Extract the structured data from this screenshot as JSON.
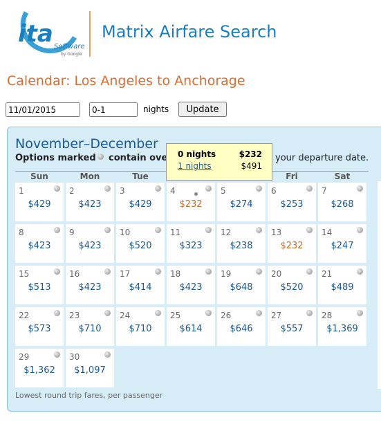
{
  "header": {
    "logo": "ita",
    "logo_sub": "Software",
    "logo_by": "by Google",
    "title": "Matrix Airfare Search"
  },
  "heading": "Calendar: Los Angeles to Anchorage",
  "form": {
    "date": "11/01/2015",
    "nights": "0-1",
    "nights_label": "nights",
    "button": "Update"
  },
  "calendar": {
    "title": "November–December",
    "legend_start": "Options marked",
    "legend_mid": "contain ove",
    "legend_end": "your departure date.",
    "weekdays": [
      "Sun",
      "Mon",
      "Tue",
      null,
      null,
      "Fri",
      "Sat"
    ],
    "days": [
      {
        "day": "1",
        "price": "$429"
      },
      {
        "day": "2",
        "price": "$423"
      },
      {
        "day": "3",
        "price": "$429"
      },
      {
        "day": "4",
        "price": "$232",
        "highlight": true,
        "selected": true
      },
      {
        "day": "5",
        "price": "$274"
      },
      {
        "day": "6",
        "price": "$253"
      },
      {
        "day": "7",
        "price": "$268"
      },
      {
        "day": "8",
        "price": "$423"
      },
      {
        "day": "9",
        "price": "$423"
      },
      {
        "day": "10",
        "price": "$520"
      },
      {
        "day": "11",
        "price": "$323"
      },
      {
        "day": "12",
        "price": "$238"
      },
      {
        "day": "13",
        "price": "$232",
        "highlight": true
      },
      {
        "day": "14",
        "price": "$247"
      },
      {
        "day": "15",
        "price": "$513"
      },
      {
        "day": "16",
        "price": "$423"
      },
      {
        "day": "17",
        "price": "$414"
      },
      {
        "day": "18",
        "price": "$423"
      },
      {
        "day": "19",
        "price": "$648"
      },
      {
        "day": "20",
        "price": "$520"
      },
      {
        "day": "21",
        "price": "$489"
      },
      {
        "day": "22",
        "price": "$573"
      },
      {
        "day": "23",
        "price": "$710"
      },
      {
        "day": "24",
        "price": "$710"
      },
      {
        "day": "25",
        "price": "$614"
      },
      {
        "day": "26",
        "price": "$646"
      },
      {
        "day": "27",
        "price": "$557"
      },
      {
        "day": "28",
        "price": "$1,369"
      },
      {
        "day": "29",
        "price": "$1,362"
      },
      {
        "day": "30",
        "price": "$1,097"
      }
    ],
    "footer": "Lowest round trip fares, per passenger"
  },
  "tooltip": {
    "rows": [
      [
        "0 nights",
        "$232"
      ],
      [
        "1 nights",
        "$491"
      ]
    ]
  }
}
